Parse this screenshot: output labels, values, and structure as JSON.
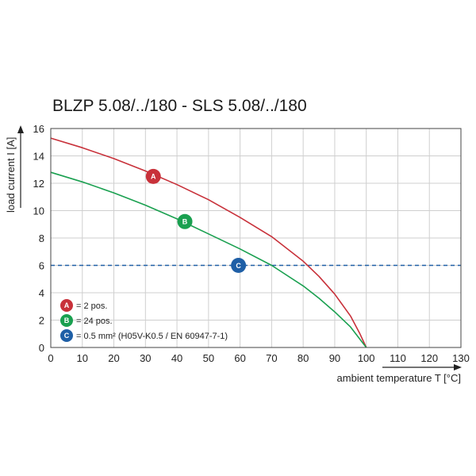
{
  "chart_data": {
    "type": "line",
    "title": "BLZP 5.08/../180 - SLS 5.08/../180",
    "xlabel": "ambient temperature T [°C]",
    "ylabel": "load current I [A]",
    "xlim": [
      0,
      130
    ],
    "ylim": [
      0,
      16
    ],
    "xticks": [
      "0",
      "10",
      "20",
      "30",
      "40",
      "50",
      "60",
      "70",
      "80",
      "90",
      "100",
      "110",
      "120",
      "130"
    ],
    "yticks": [
      "0",
      "2",
      "4",
      "6",
      "8",
      "10",
      "12",
      "14",
      "16"
    ],
    "grid": true,
    "colors": {
      "A": "#c8313a",
      "B": "#1aa050",
      "C": "#1f5fa6"
    },
    "series": [
      {
        "badge": "A",
        "x": [
          0,
          10,
          20,
          30,
          40,
          50,
          60,
          70,
          80,
          85,
          90,
          95,
          98,
          100
        ],
        "y": [
          15.3,
          14.6,
          13.8,
          12.9,
          11.9,
          10.8,
          9.5,
          8.1,
          6.3,
          5.2,
          3.9,
          2.3,
          1.0,
          0
        ]
      },
      {
        "badge": "B",
        "x": [
          0,
          10,
          20,
          30,
          40,
          50,
          60,
          70,
          80,
          85,
          90,
          95,
          98,
          100
        ],
        "y": [
          12.8,
          12.1,
          11.3,
          10.4,
          9.4,
          8.3,
          7.2,
          6.0,
          4.5,
          3.6,
          2.6,
          1.5,
          0.6,
          0
        ]
      }
    ],
    "reference_line": {
      "badge": "C",
      "y": 6
    },
    "badges": [
      {
        "letter": "A",
        "x": 32.5,
        "y": 12.5
      },
      {
        "letter": "B",
        "x": 42.5,
        "y": 9.2
      },
      {
        "letter": "C",
        "x": 59.5,
        "y": 6.0
      }
    ],
    "legend": [
      {
        "letter": "A",
        "text": "= 2 pos."
      },
      {
        "letter": "B",
        "text": "= 24 pos."
      },
      {
        "letter": "C",
        "text": "= 0.5 mm² (H05V-K0.5 / EN 60947-7-1)"
      }
    ]
  }
}
